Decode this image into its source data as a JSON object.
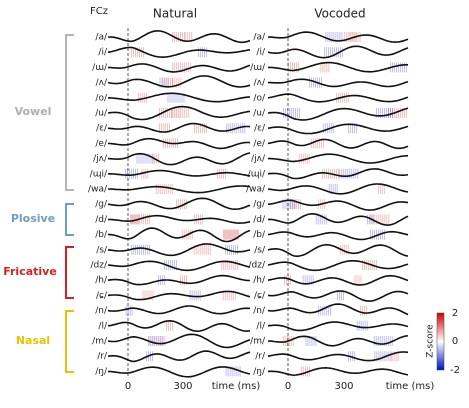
{
  "header": {
    "electrode": "FCz"
  },
  "panels": [
    {
      "title": "Natural"
    },
    {
      "title": "Vocoded"
    }
  ],
  "rows": [
    "/a/",
    "/i/",
    "/ɯ/",
    "/ʌ/",
    "/o/",
    "/u/",
    "/ɛ/",
    "/e/",
    "/jʌ/",
    "/ɰi/",
    "/wa/",
    "/g/",
    "/d/",
    "/b/",
    "/s/",
    "/dz/",
    "/h/",
    "/ɕ/",
    "/n/",
    "/l/",
    "/m/",
    "/r/",
    "/ŋ/"
  ],
  "groups": [
    {
      "label": "Vowel"
    },
    {
      "label": "Plosive"
    },
    {
      "label": "Fricative"
    },
    {
      "label": "Nasal"
    }
  ],
  "x_axis": {
    "ticks": [
      0,
      300
    ],
    "label": "time (ms)"
  },
  "colorbar": {
    "label": "Z-score",
    "ticks": [
      2,
      0,
      -2
    ]
  }
}
